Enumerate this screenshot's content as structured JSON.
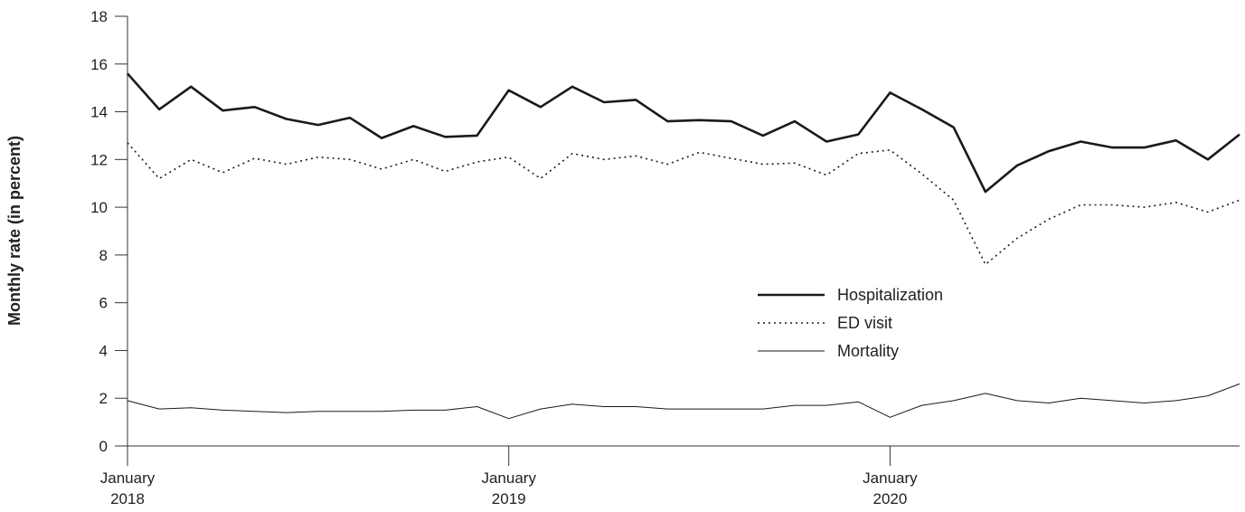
{
  "chart_data": {
    "type": "line",
    "title": "",
    "xlabel": "",
    "ylabel": "Monthly rate (in percent)",
    "ylim": [
      0,
      18
    ],
    "yticks": [
      0,
      2,
      4,
      6,
      8,
      10,
      12,
      14,
      16,
      18
    ],
    "x": [
      "2018-01",
      "2018-02",
      "2018-03",
      "2018-04",
      "2018-05",
      "2018-06",
      "2018-07",
      "2018-08",
      "2018-09",
      "2018-10",
      "2018-11",
      "2018-12",
      "2019-01",
      "2019-02",
      "2019-03",
      "2019-04",
      "2019-05",
      "2019-06",
      "2019-07",
      "2019-08",
      "2019-09",
      "2019-10",
      "2019-11",
      "2019-12",
      "2020-01",
      "2020-02",
      "2020-03",
      "2020-04",
      "2020-05",
      "2020-06",
      "2020-07",
      "2020-08",
      "2020-09",
      "2020-10",
      "2020-11",
      "2020-12"
    ],
    "x_tick_labels": [
      {
        "x": "2018-01",
        "lines": [
          "January",
          "2018"
        ]
      },
      {
        "x": "2019-01",
        "lines": [
          "January",
          "2019"
        ]
      },
      {
        "x": "2020-01",
        "lines": [
          "January",
          "2020"
        ]
      }
    ],
    "grid": false,
    "legend_position": "center-right",
    "series": [
      {
        "name": "Hospitalization",
        "style": "solid-thick",
        "color": "#1a1a1a",
        "values": [
          15.6,
          14.1,
          15.05,
          14.05,
          14.2,
          13.7,
          13.45,
          13.75,
          12.9,
          13.4,
          12.95,
          13.0,
          14.9,
          14.2,
          15.05,
          14.4,
          14.5,
          13.6,
          13.65,
          13.6,
          13.0,
          13.6,
          12.75,
          13.05,
          14.8,
          14.1,
          13.35,
          10.65,
          11.75,
          12.35,
          12.75,
          12.5,
          12.5,
          12.8,
          12.0,
          13.05
        ]
      },
      {
        "name": "ED visit",
        "style": "dotted",
        "color": "#1a1a1a",
        "values": [
          12.7,
          11.2,
          12.0,
          11.45,
          12.05,
          11.8,
          12.1,
          12.0,
          11.6,
          12.0,
          11.5,
          11.9,
          12.1,
          11.2,
          12.25,
          12.0,
          12.15,
          11.8,
          12.3,
          12.05,
          11.8,
          11.85,
          11.35,
          12.25,
          12.4,
          11.4,
          10.3,
          7.6,
          8.7,
          9.5,
          10.1,
          10.1,
          10.0,
          10.2,
          9.8,
          10.3
        ]
      },
      {
        "name": "Mortality",
        "style": "solid-thin",
        "color": "#1a1a1a",
        "values": [
          1.9,
          1.55,
          1.6,
          1.5,
          1.45,
          1.4,
          1.45,
          1.45,
          1.45,
          1.5,
          1.5,
          1.65,
          1.15,
          1.55,
          1.75,
          1.65,
          1.65,
          1.55,
          1.55,
          1.55,
          1.55,
          1.7,
          1.7,
          1.85,
          1.2,
          1.7,
          1.9,
          2.2,
          1.9,
          1.8,
          2.0,
          1.9,
          1.8,
          1.9,
          2.1,
          2.6
        ]
      }
    ]
  }
}
